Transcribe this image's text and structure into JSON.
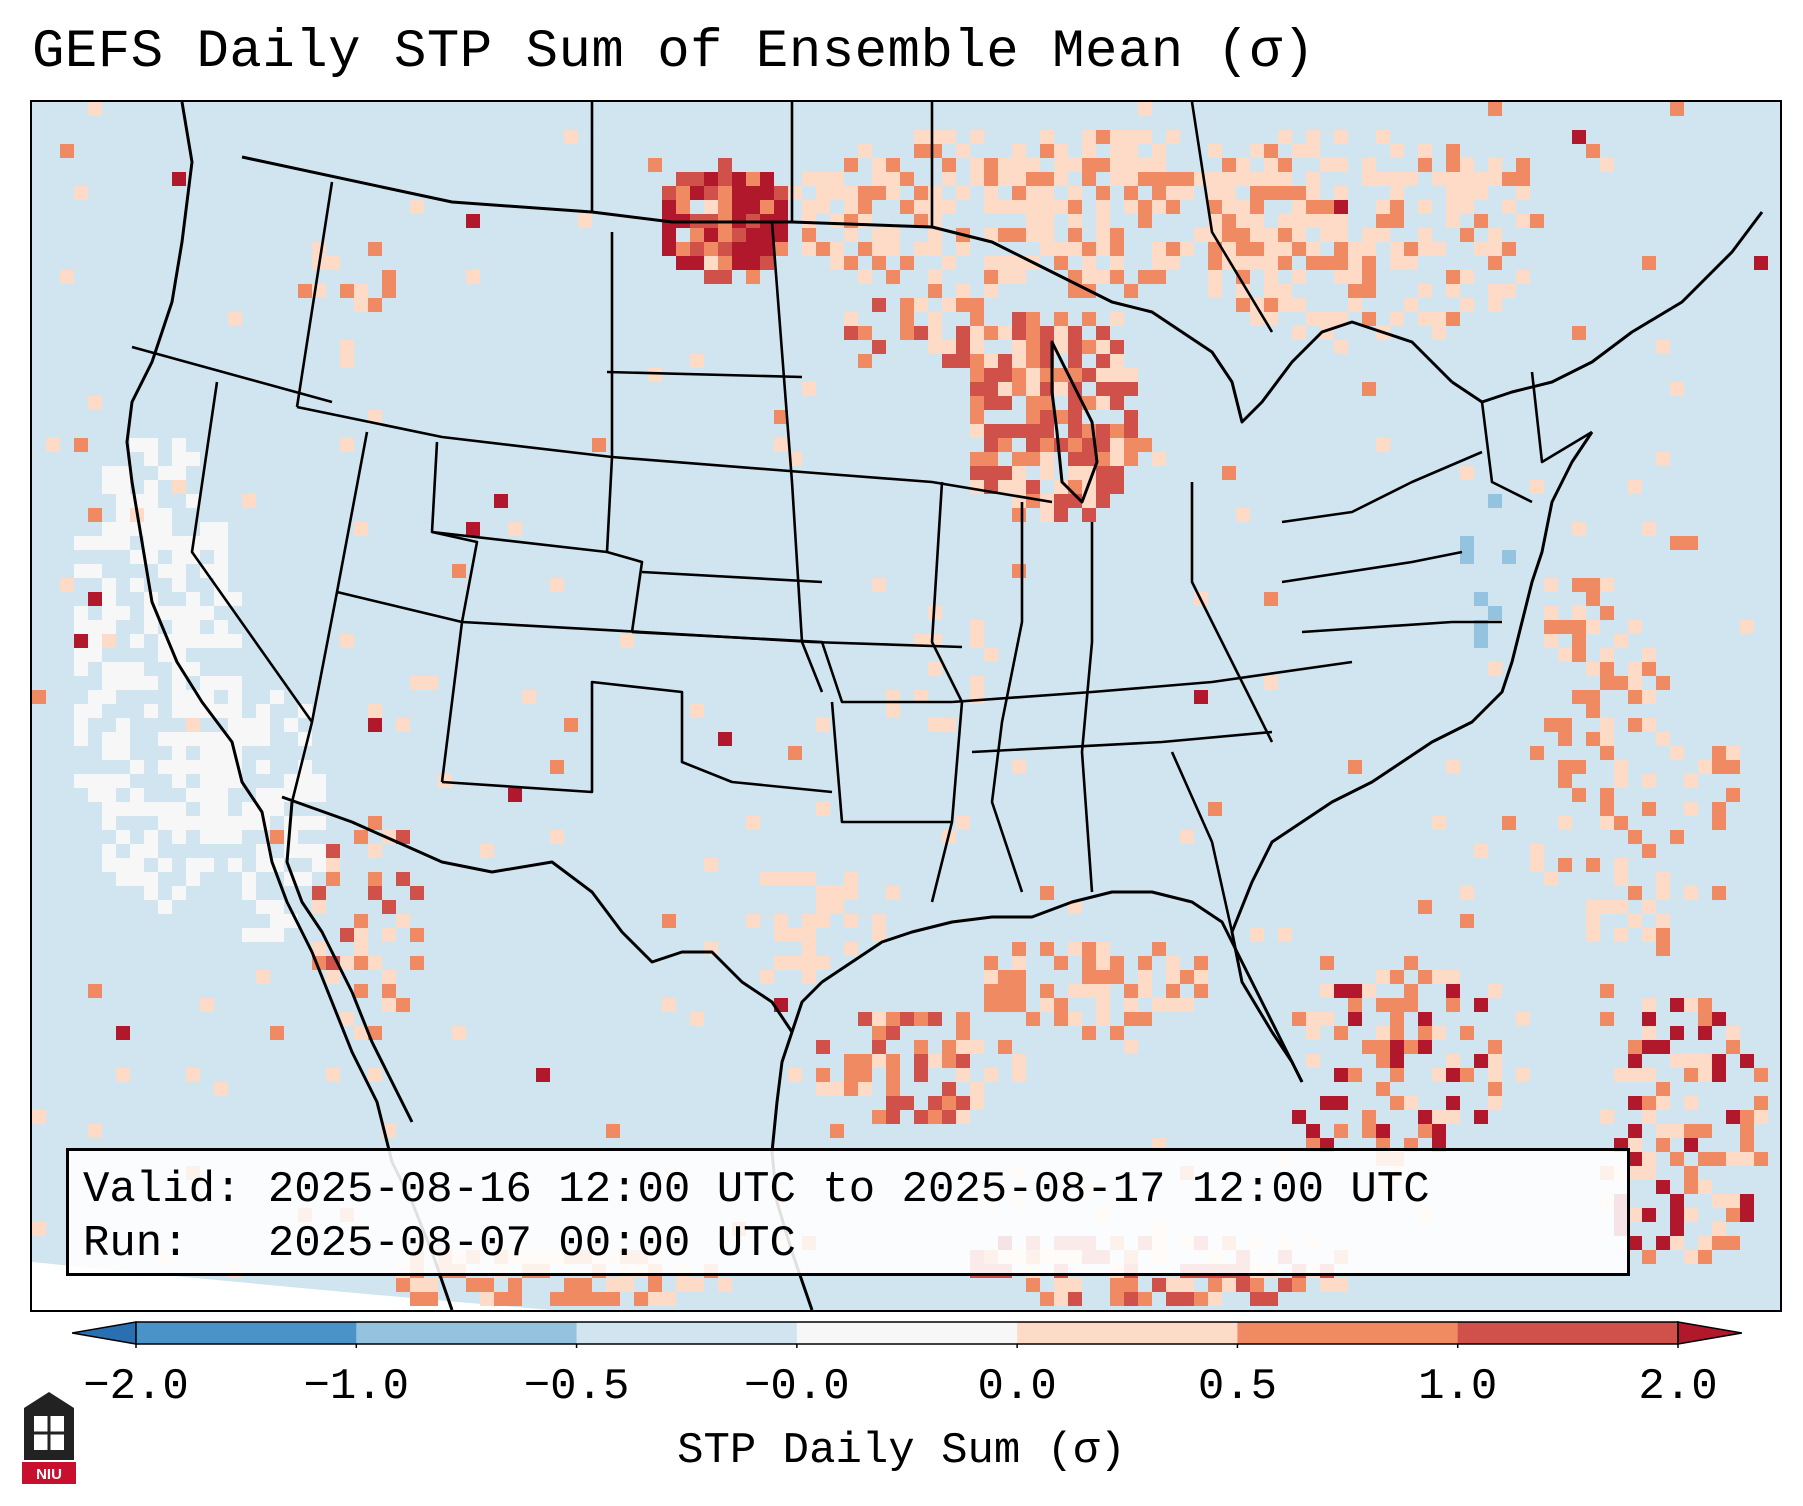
{
  "title": "GEFS Daily STP Sum of Ensemble Mean (σ)",
  "infobox": {
    "valid_label": "Valid:",
    "valid_value": "2025-08-16 12:00 UTC to 2025-08-17 12:00 UTC",
    "run_label": "Run:",
    "run_value": "2025-08-07 00:00 UTC"
  },
  "colorbar": {
    "label": "STP Daily Sum (σ)",
    "ticks": [
      "−2.0",
      "−1.0",
      "−0.5",
      "−0.0",
      "0.0",
      "0.5",
      "1.0",
      "2.0"
    ],
    "bins": [
      {
        "color": "#2b6fb3"
      },
      {
        "color": "#4a93c9"
      },
      {
        "color": "#93c3df"
      },
      {
        "color": "#d1e5f0"
      },
      {
        "color": "#f7f7f7"
      },
      {
        "color": "#fddbc7"
      },
      {
        "color": "#ef8a62"
      },
      {
        "color": "#d0504a"
      },
      {
        "color": "#b2182b"
      }
    ]
  },
  "colors": {
    "ocean": "#d1e5f0",
    "land": "#d1e5f0",
    "boundary": "#000000"
  },
  "logo": {
    "text": "NIU"
  }
}
